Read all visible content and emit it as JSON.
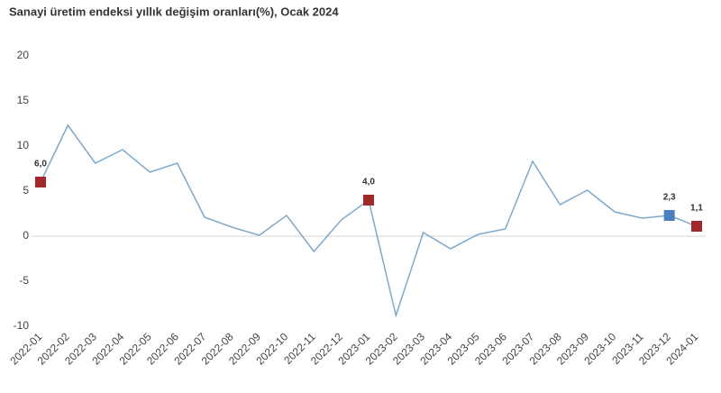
{
  "chart_data": {
    "type": "line",
    "title": "Sanayi üretim endeksi yıllık değişim oranları(%), Ocak 2024",
    "categories": [
      "2022-01",
      "2022-02",
      "2022-03",
      "2022-04",
      "2022-05",
      "2022-06",
      "2022-07",
      "2022-08",
      "2022-09",
      "2022-10",
      "2022-11",
      "2022-12",
      "2023-01",
      "2023-02",
      "2023-03",
      "2023-04",
      "2023-05",
      "2023-06",
      "2023-07",
      "2023-08",
      "2023-09",
      "2023-10",
      "2023-11",
      "2023-12",
      "2024-01"
    ],
    "series": [
      {
        "name": "Sanayi üretim endeksi",
        "color": "#7fa9cb",
        "values": [
          6.0,
          12.3,
          8.1,
          9.6,
          7.1,
          8.1,
          2.1,
          1.0,
          0.1,
          2.3,
          -1.7,
          1.8,
          4.0,
          -8.8,
          0.4,
          -1.4,
          0.2,
          0.8,
          8.3,
          3.5,
          5.1,
          2.7,
          2.0,
          2.3,
          1.1
        ],
        "value_labels": [
          "6,0",
          null,
          null,
          null,
          null,
          null,
          null,
          null,
          null,
          null,
          null,
          null,
          "4,0",
          null,
          null,
          null,
          null,
          null,
          null,
          null,
          null,
          null,
          null,
          "2,3",
          "1,1"
        ],
        "marker_colors": [
          "#a3282a",
          null,
          null,
          null,
          null,
          null,
          null,
          null,
          null,
          null,
          null,
          null,
          "#a3282a",
          null,
          null,
          null,
          null,
          null,
          null,
          null,
          null,
          null,
          null,
          "#4a7fbd",
          "#a3282a"
        ]
      }
    ],
    "ylim": [
      -10,
      20
    ],
    "yticks": [
      -10,
      -5,
      0,
      5,
      10,
      15,
      20
    ],
    "grid": false
  }
}
